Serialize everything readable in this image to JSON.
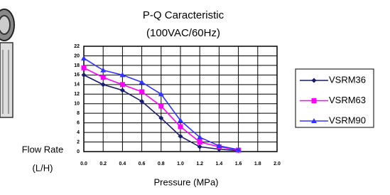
{
  "chart_data": {
    "type": "line",
    "title": "P-Q Caracteristic",
    "subtitle": "(100VAC/60Hz)",
    "y_label_lines": [
      "Flow Rate",
      "(L/H)"
    ],
    "x_label": "Pressure (MPa)",
    "x": [
      0,
      0.2,
      0.4,
      0.6,
      0.8,
      1.0,
      1.2,
      1.4,
      1.6
    ],
    "series": [
      {
        "name": "VSRM36",
        "color": "#1a1a6e",
        "marker": "diamond",
        "values": [
          16,
          14,
          12.8,
          10.5,
          7,
          3.2,
          1,
          0.5,
          0.2
        ]
      },
      {
        "name": "VSRM63",
        "color": "#ff00ff",
        "marker": "square",
        "values": [
          17.5,
          15.5,
          14,
          12.5,
          9.5,
          5.2,
          2,
          1,
          0.3
        ]
      },
      {
        "name": "VSRM90",
        "color": "#3333ff",
        "marker": "triangle",
        "values": [
          19.5,
          17,
          16,
          14.5,
          12,
          6.5,
          3,
          1.2,
          0.4
        ]
      }
    ],
    "xlim": [
      0,
      2.0
    ],
    "xticks": [
      {
        "value": 0,
        "label": "0.0"
      },
      0.2,
      0.4,
      0.6,
      0.8,
      {
        "value": 1,
        "label": "1.0"
      },
      1.2,
      1.4,
      1.6,
      1.8,
      {
        "value": 2,
        "label": "2.0"
      }
    ],
    "ylim": [
      0,
      22
    ],
    "yticks": [
      0,
      2,
      4,
      6,
      8,
      10,
      12,
      14,
      16,
      18,
      20,
      22
    ],
    "grid": true,
    "legend": "right"
  }
}
